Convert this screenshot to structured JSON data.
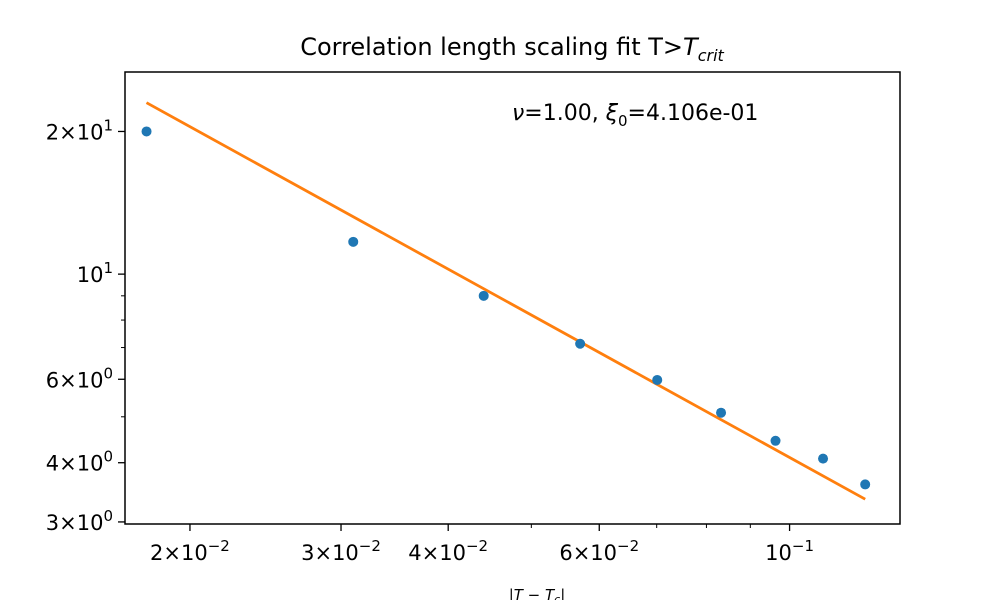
{
  "chart_data": {
    "type": "scatter",
    "title_main": "Correlation length scaling fit T>",
    "title_sub_base": "T",
    "title_sub_index": "crit",
    "xlabel_main": "|T − T",
    "xlabel_sub": "c",
    "xlabel_end": "|",
    "xscale": "log",
    "yscale": "log",
    "xlim": [
      0.0168,
      0.1345
    ],
    "ylim": [
      2.97,
      26.7
    ],
    "annotation": {
      "nu_symbol": "ν",
      "nu_value": "=1.00, ",
      "xi_symbol": "ξ",
      "xi_sub": "0",
      "xi_value": "=4.106e-01"
    },
    "x_major_ticks": [
      {
        "value": 0.02,
        "mant": "2×10",
        "exp": "−2"
      },
      {
        "value": 0.03,
        "mant": "3×10",
        "exp": "−2"
      },
      {
        "value": 0.04,
        "mant": "4×10",
        "exp": "−2"
      },
      {
        "value": 0.06,
        "mant": "6×10",
        "exp": "−2"
      },
      {
        "value": 0.1,
        "mant": "10",
        "exp": "−1"
      }
    ],
    "x_minor_ticks": [
      0.05,
      0.07,
      0.08,
      0.09
    ],
    "y_major_ticks": [
      {
        "value": 20,
        "mant": "2×10",
        "exp": "1"
      },
      {
        "value": 10,
        "mant": "10",
        "exp": "1"
      },
      {
        "value": 6,
        "mant": "6×10",
        "exp": "0"
      },
      {
        "value": 4,
        "mant": "4×10",
        "exp": "0"
      },
      {
        "value": 3,
        "mant": "3×10",
        "exp": "0"
      }
    ],
    "y_minor_ticks": [
      5,
      7,
      8,
      9
    ],
    "series": [
      {
        "kind": "points",
        "color": "#1f77b4",
        "x": [
          0.0178,
          0.031,
          0.044,
          0.057,
          0.0701,
          0.0832,
          0.0963,
          0.1094,
          0.1225
        ],
        "y": [
          20.0,
          11.7,
          9.0,
          7.13,
          5.98,
          5.1,
          4.45,
          4.08,
          3.6
        ]
      },
      {
        "kind": "line",
        "color": "#ff7f0e",
        "x": [
          0.0178,
          0.1225
        ],
        "y": [
          23.0,
          3.35
        ]
      }
    ]
  }
}
